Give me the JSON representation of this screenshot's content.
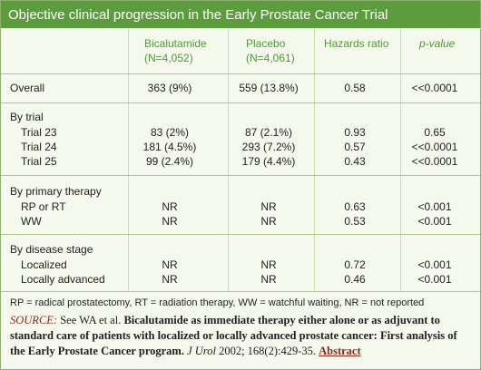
{
  "title": "Objective clinical progression in the Early Prostate Cancer Trial",
  "table": {
    "columns": [
      {
        "name": "Bicalutamide",
        "n": "(N=4,052)"
      },
      {
        "name": "Placebo",
        "n": "(N=4,061)"
      },
      {
        "name": "Hazards ratio"
      },
      {
        "name": "p-value"
      }
    ],
    "groups": [
      {
        "label": "Overall",
        "cells": [
          "363 (9%)",
          "559 (13.8%)",
          "0.58",
          "<<0.0001"
        ]
      },
      {
        "label": "By trial",
        "rows": [
          {
            "label": "Trial 23",
            "cells": [
              "83 (2%)",
              "87 (2.1%)",
              "0.93",
              "0.65"
            ]
          },
          {
            "label": "Trial 24",
            "cells": [
              "181 (4.5%)",
              "293 (7.2%)",
              "0.57",
              "<<0.0001"
            ]
          },
          {
            "label": "Trial 25",
            "cells": [
              "99 (2.4%)",
              "179 (4.4%)",
              "0.43",
              "<<0.0001"
            ]
          }
        ]
      },
      {
        "label": "By primary therapy",
        "rows": [
          {
            "label": "RP or RT",
            "cells": [
              "NR",
              "NR",
              "0.63",
              "<0.001"
            ]
          },
          {
            "label": "WW",
            "cells": [
              "NR",
              "NR",
              "0.53",
              "<0.001"
            ]
          }
        ]
      },
      {
        "label": "By disease stage",
        "rows": [
          {
            "label": "Localized",
            "cells": [
              "NR",
              "NR",
              "0.72",
              "<0.001"
            ]
          },
          {
            "label": "Locally advanced",
            "cells": [
              "NR",
              "NR",
              "0.46",
              "<0.001"
            ]
          }
        ]
      }
    ]
  },
  "footnote": "RP = radical prostatectomy, RT = radiation therapy, WW = watchful waiting, NR = not reported",
  "source": {
    "label": "SOURCE:",
    "authors": "See WA et al.",
    "article": "Bicalutamide as immediate therapy either alone or as adjuvant to standard care of patients with localized or locally advanced prostate cancer: First analysis of the Early Prostate Cancer program.",
    "journal": "J Urol",
    "citation": "2002; 168(2):429-35.",
    "link": "Abstract"
  }
}
